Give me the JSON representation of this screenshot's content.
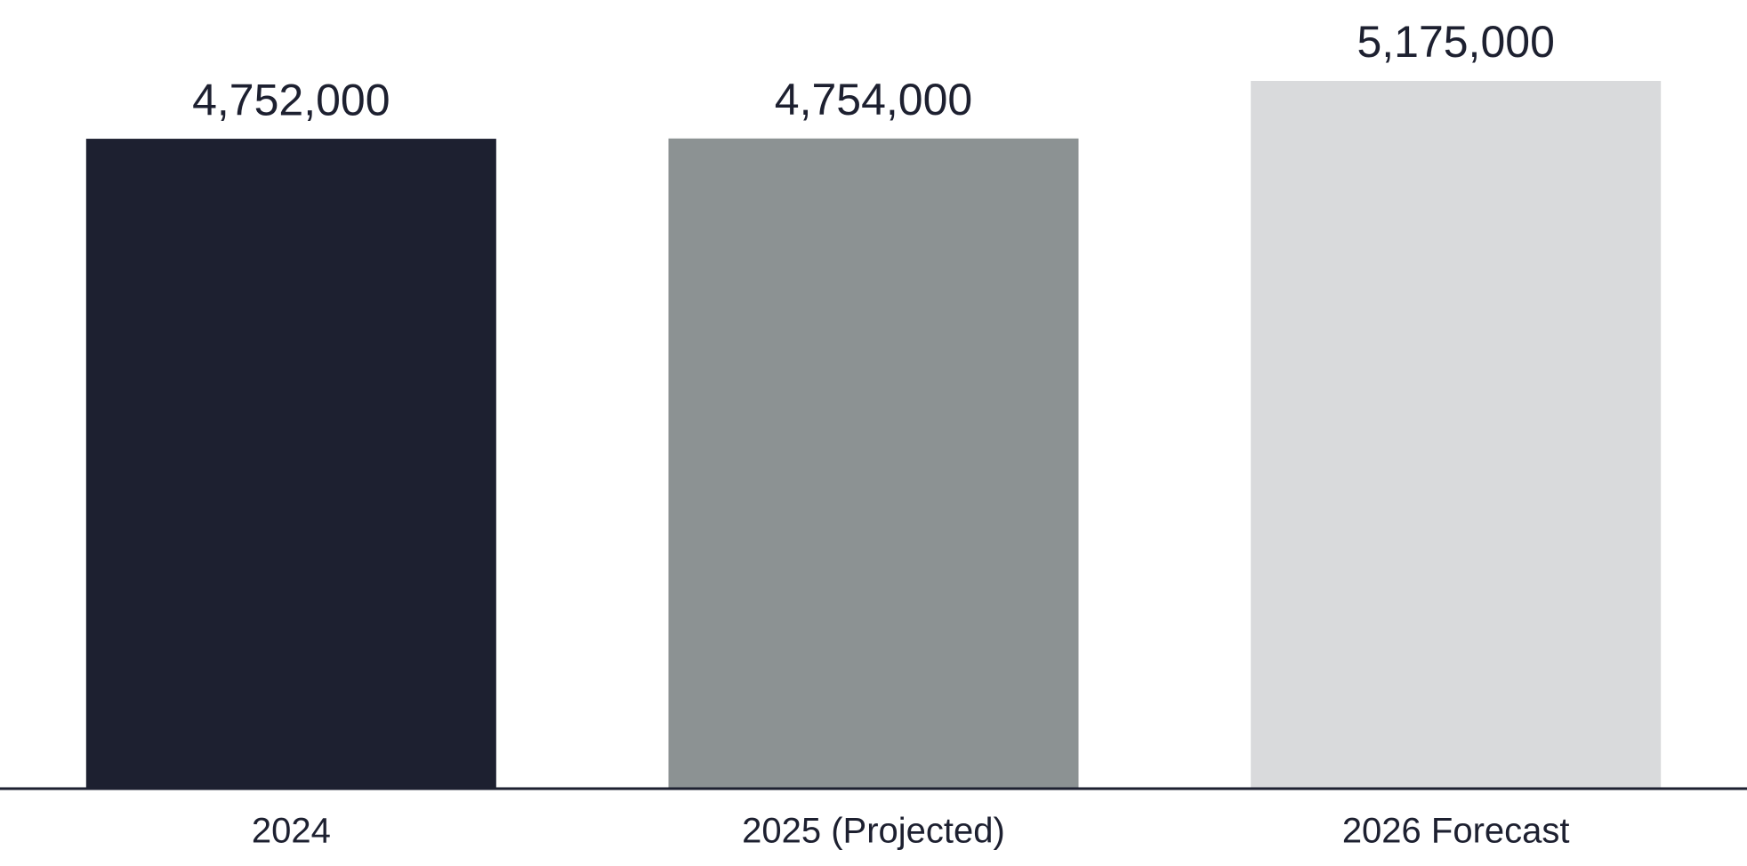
{
  "chart_data": {
    "type": "bar",
    "categories": [
      "2024",
      "2025 (Projected)",
      "2026 Forecast"
    ],
    "values": [
      4752000,
      4754000,
      5175000
    ],
    "value_labels": [
      "4,752,000",
      "4,754,000",
      "5,175,000"
    ],
    "colors": [
      "#1d2030",
      "#8c9293",
      "#d9dadc"
    ]
  }
}
